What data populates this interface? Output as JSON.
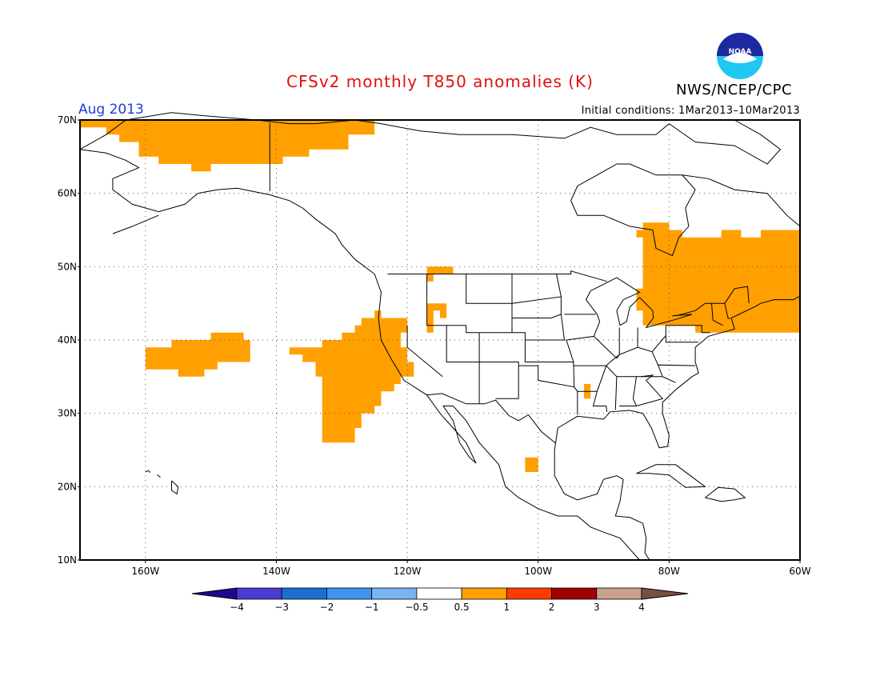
{
  "header": {
    "title": "CFSv2 monthly T850 anomalies (K)",
    "month": "Aug 2013",
    "initial_conditions": "Initial conditions: 1Mar2013–10Mar2013",
    "agency": "NWS/NCEP/CPC",
    "logo_text": "NOAA"
  },
  "map": {
    "lon_range": [
      -170,
      -60
    ],
    "lat_range": [
      10,
      70
    ],
    "lat_ticks": [
      {
        "value": 70,
        "label": "70N"
      },
      {
        "value": 60,
        "label": "60N"
      },
      {
        "value": 50,
        "label": "50N"
      },
      {
        "value": 40,
        "label": "40N"
      },
      {
        "value": 30,
        "label": "30N"
      },
      {
        "value": 20,
        "label": "20N"
      },
      {
        "value": 10,
        "label": "10N"
      }
    ],
    "lon_ticks": [
      {
        "value": -160,
        "label": "160W"
      },
      {
        "value": -140,
        "label": "140W"
      },
      {
        "value": -120,
        "label": "120W"
      },
      {
        "value": -100,
        "label": "100W"
      },
      {
        "value": -80,
        "label": "80W"
      },
      {
        "value": -60,
        "label": "60W"
      }
    ],
    "grid": "dotted",
    "anomaly_color": "#ffa000",
    "anomaly_regions": [
      {
        "name": "arctic-alaska",
        "points": [
          [
            -170,
            70
          ],
          [
            -125,
            70
          ],
          [
            -125,
            68
          ],
          [
            -129,
            68
          ],
          [
            -129,
            66
          ],
          [
            -135,
            66
          ],
          [
            -135,
            65
          ],
          [
            -139,
            65
          ],
          [
            -139,
            64
          ],
          [
            -148,
            64
          ],
          [
            -148,
            64
          ],
          [
            -150,
            64
          ],
          [
            -150,
            63
          ],
          [
            -153,
            63
          ],
          [
            -153,
            64
          ],
          [
            -158,
            64
          ],
          [
            -158,
            65
          ],
          [
            -161,
            65
          ],
          [
            -161,
            67
          ],
          [
            -164,
            67
          ],
          [
            -164,
            68
          ],
          [
            -166,
            68
          ],
          [
            -166,
            69
          ],
          [
            -170,
            69
          ]
        ]
      },
      {
        "name": "north-pacific",
        "points": [
          [
            -159,
            39
          ],
          [
            -156,
            39
          ],
          [
            -156,
            40
          ],
          [
            -150,
            40
          ],
          [
            -150,
            41
          ],
          [
            -145,
            41
          ],
          [
            -145,
            40
          ],
          [
            -144,
            40
          ],
          [
            -144,
            37
          ],
          [
            -149,
            37
          ],
          [
            -149,
            36
          ],
          [
            -151,
            36
          ],
          [
            -151,
            35
          ],
          [
            -155,
            35
          ],
          [
            -155,
            36
          ],
          [
            -160,
            36
          ],
          [
            -160,
            39
          ]
        ]
      },
      {
        "name": "us-west-coast",
        "points": [
          [
            -138,
            39
          ],
          [
            -133,
            39
          ],
          [
            -133,
            40
          ],
          [
            -130,
            40
          ],
          [
            -130,
            41
          ],
          [
            -128,
            41
          ],
          [
            -128,
            42
          ],
          [
            -127,
            42
          ],
          [
            -127,
            43
          ],
          [
            -125,
            43
          ],
          [
            -125,
            44
          ],
          [
            -124,
            44
          ],
          [
            -124,
            43
          ],
          [
            -120,
            43
          ],
          [
            -120,
            41
          ],
          [
            -121,
            41
          ],
          [
            -121,
            39
          ],
          [
            -120,
            39
          ],
          [
            -120,
            37
          ],
          [
            -119,
            37
          ],
          [
            -119,
            35
          ],
          [
            -121,
            35
          ],
          [
            -121,
            34
          ],
          [
            -122,
            34
          ],
          [
            -122,
            33
          ],
          [
            -124,
            33
          ],
          [
            -124,
            31
          ],
          [
            -125,
            31
          ],
          [
            -125,
            30
          ],
          [
            -127,
            30
          ],
          [
            -127,
            28
          ],
          [
            -128,
            28
          ],
          [
            -128,
            26
          ],
          [
            -133,
            26
          ],
          [
            -133,
            28
          ],
          [
            -133,
            35
          ],
          [
            -134,
            35
          ],
          [
            -134,
            37
          ],
          [
            -136,
            37
          ],
          [
            -136,
            38
          ],
          [
            -138,
            38
          ]
        ]
      },
      {
        "name": "idaho",
        "points": [
          [
            -117,
            50
          ],
          [
            -113,
            50
          ],
          [
            -113,
            49
          ],
          [
            -116,
            49
          ],
          [
            -116,
            48
          ],
          [
            -117,
            48
          ]
        ]
      },
      {
        "name": "montana-wyoming",
        "points": [
          [
            -117,
            45
          ],
          [
            -114,
            45
          ],
          [
            -114,
            43
          ],
          [
            -115,
            43
          ],
          [
            -115,
            44
          ],
          [
            -116,
            44
          ],
          [
            -116,
            41
          ],
          [
            -117,
            41
          ]
        ]
      },
      {
        "name": "northeast-canada",
        "points": [
          [
            -84,
            56
          ],
          [
            -80,
            56
          ],
          [
            -80,
            55
          ],
          [
            -78,
            55
          ],
          [
            -78,
            54
          ],
          [
            -72,
            54
          ],
          [
            -72,
            55
          ],
          [
            -69,
            55
          ],
          [
            -69,
            54
          ],
          [
            -66,
            54
          ],
          [
            -66,
            55
          ],
          [
            -60,
            55
          ],
          [
            -60,
            41
          ],
          [
            -76,
            41
          ],
          [
            -76,
            42
          ],
          [
            -80,
            42
          ],
          [
            -80,
            42
          ],
          [
            -84,
            42
          ],
          [
            -84,
            44
          ],
          [
            -85,
            44
          ],
          [
            -85,
            47
          ],
          [
            -84,
            47
          ],
          [
            -84,
            54
          ],
          [
            -85,
            54
          ],
          [
            -85,
            55
          ],
          [
            -84,
            55
          ]
        ]
      },
      {
        "name": "louisiana",
        "points": [
          [
            -93,
            34
          ],
          [
            -92,
            34
          ],
          [
            -92,
            32
          ],
          [
            -93,
            32
          ]
        ]
      },
      {
        "name": "mexico-pacific",
        "points": [
          [
            -102,
            24
          ],
          [
            -100,
            24
          ],
          [
            -100,
            22
          ],
          [
            -102,
            22
          ]
        ]
      }
    ]
  },
  "colorbar": {
    "colors": [
      "#1e0a8c",
      "#4a3cd0",
      "#1e6ed2",
      "#3c96f0",
      "#78b4f0",
      "#ffffff",
      "#ffa000",
      "#ff3c00",
      "#a00000",
      "#c8a08c",
      "#7a5040"
    ],
    "labels": [
      "−4",
      "−3",
      "−2",
      "−1",
      "−0.5",
      "0.5",
      "1",
      "2",
      "3",
      "4"
    ]
  }
}
